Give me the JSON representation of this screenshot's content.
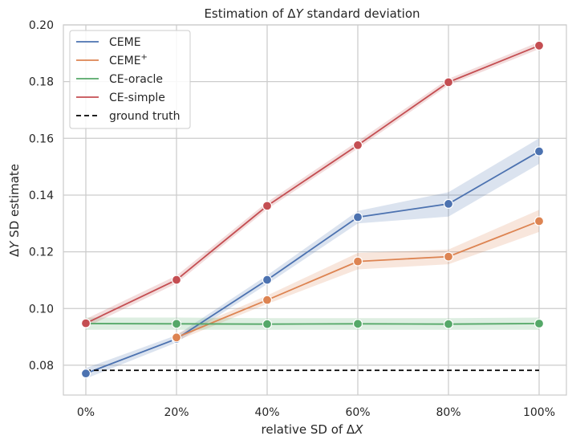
{
  "chart_data": {
    "type": "line",
    "title_prefix": "Estimation of Δ",
    "title_var": "Y",
    "title_suffix": " standard deviation",
    "xlabel_prefix": "relative SD of Δ",
    "xlabel_var": "X",
    "ylabel_prefix": "Δ",
    "ylabel_var": "Y",
    "ylabel_suffix": " SD estimate",
    "categories": [
      "0%",
      "20%",
      "40%",
      "60%",
      "80%",
      "100%"
    ],
    "y_ticks": [
      "0.08",
      "0.10",
      "0.12",
      "0.14",
      "0.16",
      "0.18",
      "0.20"
    ],
    "y_tick_values": [
      0.08,
      0.1,
      0.12,
      0.14,
      0.16,
      0.18,
      0.2
    ],
    "ylim": [
      0.0695,
      0.2
    ],
    "grid": true,
    "legend_position": "top-left",
    "series": [
      {
        "name": "CEME",
        "color": "#4c72b0",
        "values": [
          0.0771,
          0.0893,
          0.1101,
          0.1322,
          0.1369,
          0.1554
        ],
        "lower": [
          0.0753,
          0.088,
          0.1086,
          0.13,
          0.1324,
          0.151
        ],
        "upper": [
          0.079,
          0.0906,
          0.1117,
          0.1344,
          0.141,
          0.16
        ]
      },
      {
        "name": "CEME",
        "name_sup": "+",
        "color": "#dd8452",
        "values": [
          null,
          0.0898,
          0.103,
          0.1166,
          0.1183,
          0.1308
        ],
        "lower": [
          null,
          0.0886,
          0.1016,
          0.1138,
          0.1156,
          0.127
        ],
        "upper": [
          null,
          0.091,
          0.1046,
          0.1196,
          0.1208,
          0.1348
        ]
      },
      {
        "name": "CE-oracle",
        "color": "#55a868",
        "values": [
          0.0947,
          0.0946,
          0.0945,
          0.0946,
          0.0945,
          0.0947
        ],
        "lower": [
          0.0925,
          0.0925,
          0.0925,
          0.0925,
          0.0925,
          0.0925
        ],
        "upper": [
          0.0968,
          0.0968,
          0.0966,
          0.0966,
          0.0966,
          0.0968
        ]
      },
      {
        "name": "CE-simple",
        "color": "#c44e52",
        "values": [
          0.0948,
          0.1101,
          0.1362,
          0.1576,
          0.1798,
          0.1927
        ],
        "lower": [
          0.0934,
          0.1088,
          0.135,
          0.1564,
          0.1787,
          0.1915
        ],
        "upper": [
          0.0963,
          0.1116,
          0.1375,
          0.159,
          0.181,
          0.194
        ]
      }
    ],
    "reference_line": {
      "name": "ground truth",
      "value": 0.0782,
      "color": "#000000"
    }
  }
}
